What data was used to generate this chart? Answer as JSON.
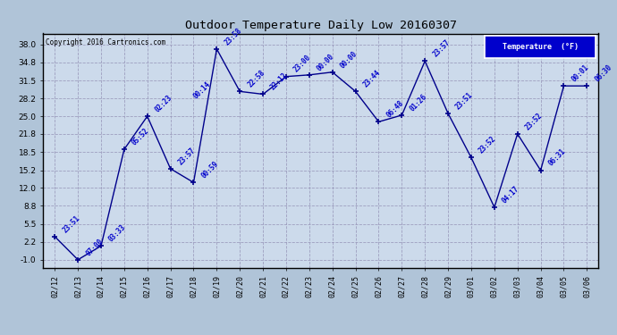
{
  "title": "Outdoor Temperature Daily Low 20160307",
  "copyright": "Copyright 2016 Cartronics.com",
  "legend_label": "Temperature  (°F)",
  "x_labels": [
    "02/12",
    "02/13",
    "02/14",
    "02/15",
    "02/16",
    "02/17",
    "02/18",
    "02/19",
    "02/20",
    "02/21",
    "02/22",
    "02/23",
    "02/24",
    "02/25",
    "02/26",
    "02/27",
    "02/28",
    "02/29",
    "03/01",
    "03/02",
    "03/03",
    "03/04",
    "03/05",
    "03/06"
  ],
  "y_values": [
    3.2,
    -1.0,
    1.5,
    19.0,
    25.0,
    15.5,
    13.0,
    37.2,
    29.5,
    29.0,
    32.2,
    32.5,
    33.0,
    29.5,
    24.0,
    25.2,
    35.0,
    25.5,
    17.5,
    8.5,
    21.8,
    15.2,
    30.5,
    30.5
  ],
  "time_labels": [
    "23:51",
    "07:00",
    "03:33",
    "05:52",
    "02:23",
    "23:57",
    "00:59",
    "23:58",
    "22:58",
    "22:12",
    "23:00",
    "00:00",
    "00:00",
    "23:44",
    "06:48",
    "01:26",
    "23:57",
    "23:51",
    "23:52",
    "04:17",
    "23:52",
    "06:31",
    "00:01",
    "06:30"
  ],
  "line_color": "#00008b",
  "marker_color": "#00008b",
  "bg_color": "#b0c4d8",
  "plot_bg_color": "#ccdaeb",
  "grid_color": "#9999bb",
  "title_color": "#000000",
  "legend_bg": "#0000cc",
  "legend_fg": "#ffffff",
  "y_ticks": [
    -1.0,
    2.2,
    5.5,
    8.8,
    12.0,
    15.2,
    18.5,
    21.8,
    25.0,
    28.2,
    31.5,
    34.8,
    38.0
  ],
  "ylim": [
    -2.5,
    40.0
  ],
  "text_color": "#0000cc"
}
